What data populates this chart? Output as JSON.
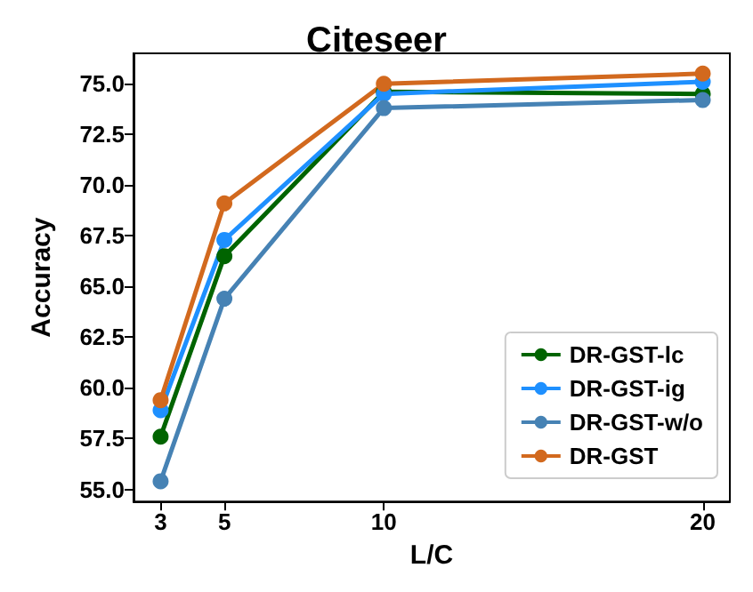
{
  "chart_data": {
    "type": "line",
    "title": "Citeseer",
    "xlabel": "L/C",
    "ylabel": "Accuracy",
    "x": [
      3,
      5,
      10,
      20
    ],
    "xlim": [
      2.15,
      20.85
    ],
    "xticks": [
      3,
      5,
      10,
      20
    ],
    "ylim": [
      54.4,
      76.5
    ],
    "yticks": [
      {
        "value": 55,
        "label": "55.0"
      },
      {
        "value": 57.5,
        "label": "57.5"
      },
      {
        "value": 60,
        "label": "60.0"
      },
      {
        "value": 62.5,
        "label": "62.5"
      },
      {
        "value": 65,
        "label": "65.0"
      },
      {
        "value": 67.5,
        "label": "67.5"
      },
      {
        "value": 70,
        "label": "70.0"
      },
      {
        "value": 72.5,
        "label": "72.5"
      },
      {
        "value": 75,
        "label": "75.0"
      }
    ],
    "series": [
      {
        "name": "DR-GST-lc",
        "color": "#006400",
        "values": [
          57.6,
          66.5,
          74.6,
          74.5
        ]
      },
      {
        "name": "DR-GST-ig",
        "color": "#1e90ff",
        "values": [
          58.9,
          67.3,
          74.5,
          75.1
        ]
      },
      {
        "name": "DR-GST-w/o",
        "color": "#4682b4",
        "values": [
          55.4,
          64.4,
          73.8,
          74.2
        ]
      },
      {
        "name": "DR-GST",
        "color": "#d2691e",
        "values": [
          59.4,
          69.1,
          75.0,
          75.5
        ]
      }
    ],
    "grid": false,
    "legend": "bottom right",
    "marker": "circle",
    "line_style": "solid"
  }
}
